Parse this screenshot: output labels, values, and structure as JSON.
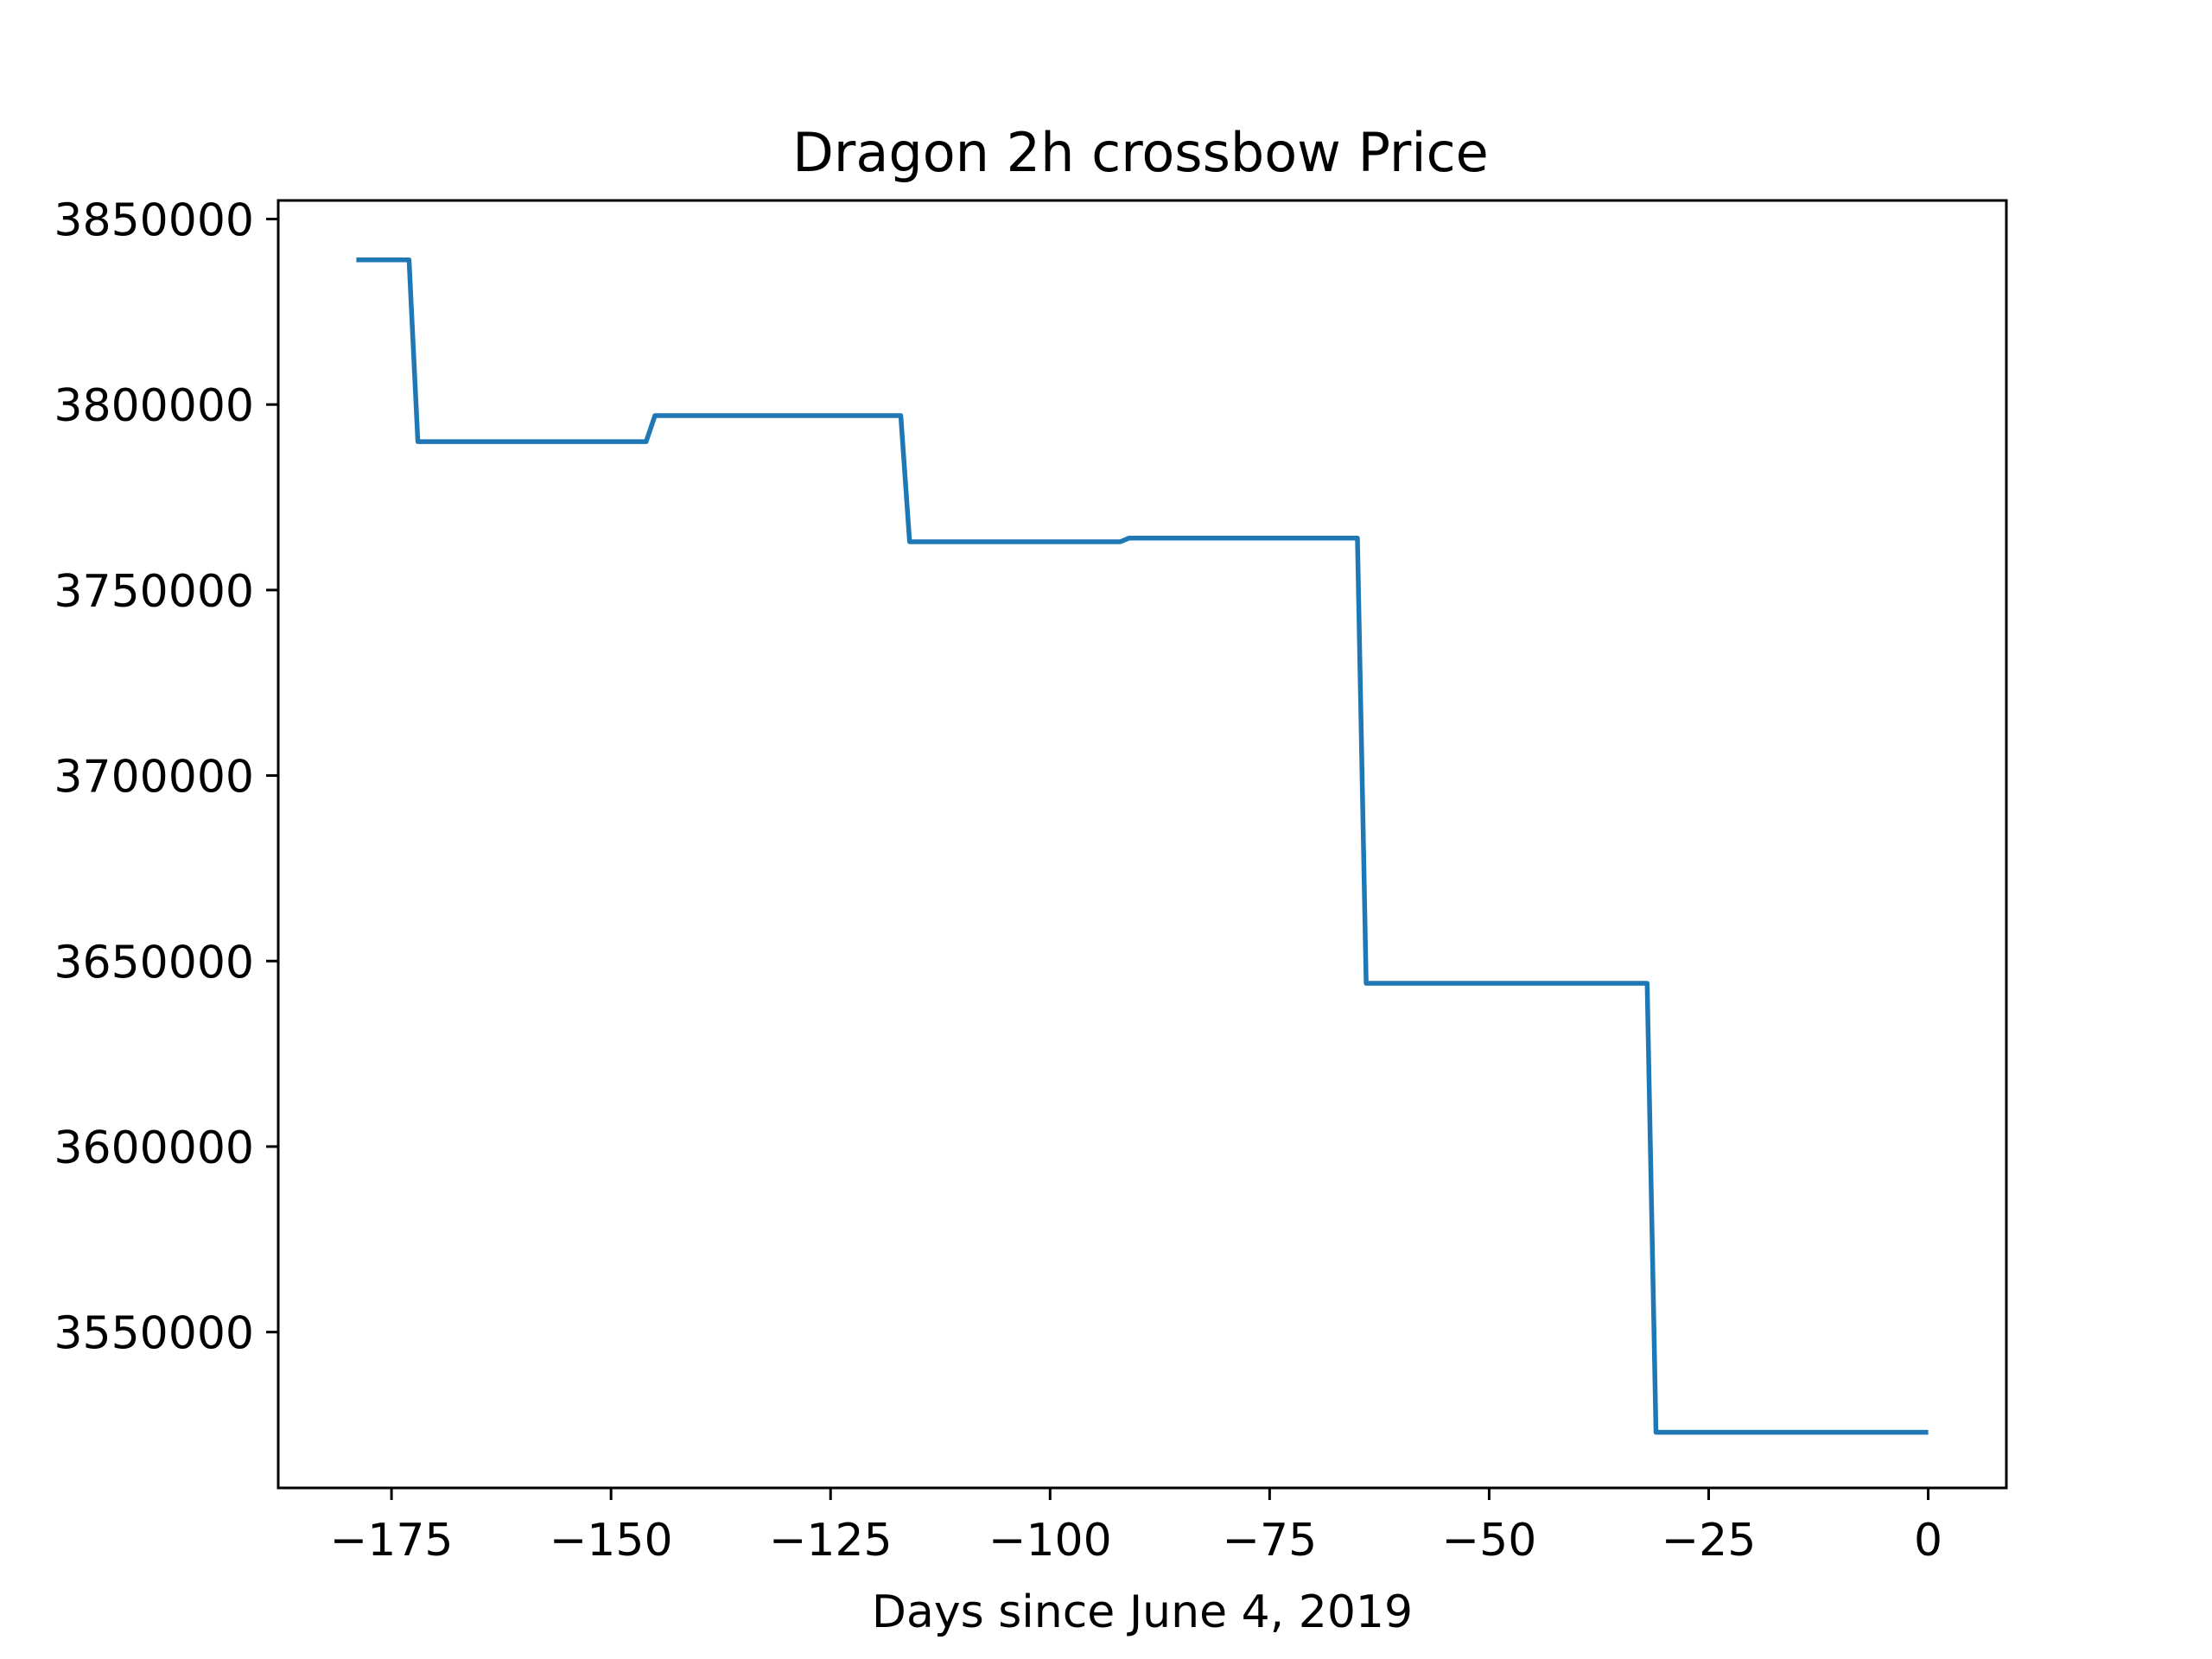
{
  "chart_data": {
    "type": "line",
    "title": "Dragon 2h crossbow Price",
    "xlabel": "Days since June 4, 2019",
    "ylabel": "",
    "xlim": [
      -187.9,
      8.9
    ],
    "ylim": [
      3508000,
      3855000
    ],
    "xticks": [
      -175,
      -150,
      -125,
      -100,
      -75,
      -50,
      -25,
      0
    ],
    "xtick_labels": [
      "−175",
      "−150",
      "−125",
      "−100",
      "−75",
      "−50",
      "−25",
      "0"
    ],
    "yticks": [
      3550000,
      3600000,
      3650000,
      3700000,
      3750000,
      3800000,
      3850000
    ],
    "ytick_labels": [
      "3550000",
      "3600000",
      "3650000",
      "3700000",
      "3750000",
      "3800000",
      "3850000"
    ],
    "grid": false,
    "series": [
      {
        "color": "#1f77b4",
        "x": [
          -179,
          -173,
          -172,
          -146,
          -145,
          -117,
          -116,
          -92,
          -91,
          -65,
          -64,
          -32,
          -31,
          0
        ],
        "y": [
          3839000,
          3839000,
          3790000,
          3790000,
          3797000,
          3797000,
          3763000,
          3763000,
          3764000,
          3764000,
          3644000,
          3644000,
          3523000,
          3523000
        ]
      }
    ]
  }
}
